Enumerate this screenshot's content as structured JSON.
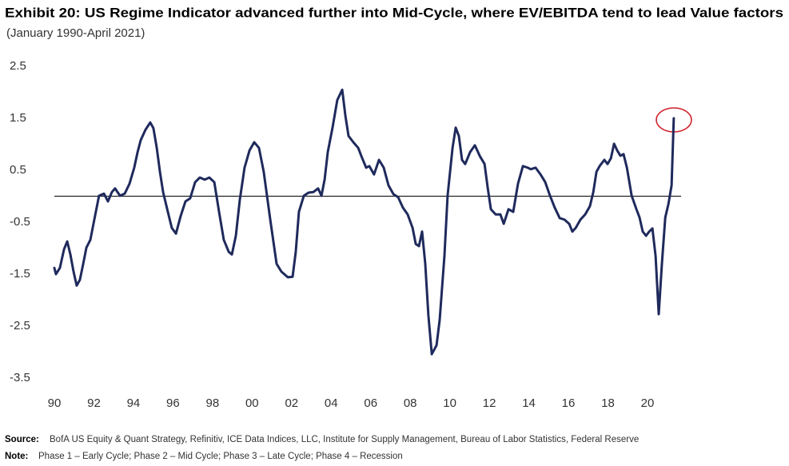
{
  "chart_data": {
    "type": "line",
    "title": "Exhibit 20: US Regime Indicator advanced further into Mid-Cycle, where EV/EBITDA tend to lead Value factors",
    "subtitle": "(January 1990-April 2021)",
    "x": [
      1990.0,
      1990.08,
      1990.28,
      1990.49,
      1990.65,
      1990.81,
      1990.97,
      1991.13,
      1991.29,
      1991.46,
      1991.62,
      1991.82,
      1992.02,
      1992.26,
      1992.51,
      1992.71,
      1992.91,
      1993.07,
      1993.32,
      1993.56,
      1993.8,
      1994.04,
      1994.21,
      1994.37,
      1994.61,
      1994.85,
      1995.01,
      1995.18,
      1995.34,
      1995.5,
      1995.74,
      1995.94,
      1996.15,
      1996.39,
      1996.63,
      1996.87,
      1997.12,
      1997.36,
      1997.6,
      1997.84,
      1998.09,
      1998.33,
      1998.57,
      1998.82,
      1998.98,
      1999.18,
      1999.38,
      1999.62,
      1999.87,
      2000.11,
      2000.35,
      2000.59,
      2000.92,
      2001.24,
      2001.48,
      2001.81,
      2002.05,
      2002.21,
      2002.37,
      2002.62,
      2002.86,
      2003.1,
      2003.34,
      2003.51,
      2003.67,
      2003.83,
      2004.07,
      2004.31,
      2004.56,
      2004.72,
      2004.88,
      2005.12,
      2005.37,
      2005.53,
      2005.77,
      2005.93,
      2006.17,
      2006.42,
      2006.66,
      2006.9,
      2007.15,
      2007.39,
      2007.63,
      2007.87,
      2008.12,
      2008.28,
      2008.44,
      2008.6,
      2008.76,
      2008.92,
      2009.09,
      2009.33,
      2009.49,
      2009.73,
      2009.89,
      2010.14,
      2010.3,
      2010.46,
      2010.62,
      2010.78,
      2011.03,
      2011.27,
      2011.51,
      2011.76,
      2011.92,
      2012.08,
      2012.32,
      2012.56,
      2012.73,
      2012.97,
      2013.21,
      2013.45,
      2013.7,
      2013.94,
      2014.1,
      2014.34,
      2014.59,
      2014.83,
      2015.07,
      2015.31,
      2015.56,
      2015.8,
      2016.04,
      2016.2,
      2016.37,
      2016.61,
      2016.85,
      2017.09,
      2017.26,
      2017.42,
      2017.58,
      2017.82,
      2017.98,
      2018.15,
      2018.31,
      2018.47,
      2018.63,
      2018.79,
      2018.96,
      2019.2,
      2019.44,
      2019.6,
      2019.76,
      2019.93,
      2020.09,
      2020.25,
      2020.41,
      2020.57,
      2020.73,
      2020.9,
      2021.06,
      2021.22,
      2021.33
    ],
    "series": [
      {
        "color": "#1f2a5c",
        "values": [
          -1.38,
          -1.5,
          -1.38,
          -1.02,
          -0.87,
          -1.12,
          -1.45,
          -1.72,
          -1.61,
          -1.3,
          -0.99,
          -0.84,
          -0.45,
          0.01,
          0.05,
          -0.1,
          0.08,
          0.15,
          0.01,
          0.05,
          0.24,
          0.55,
          0.85,
          1.08,
          1.28,
          1.42,
          1.31,
          0.93,
          0.47,
          0.08,
          -0.3,
          -0.61,
          -0.72,
          -0.38,
          -0.1,
          -0.04,
          0.27,
          0.36,
          0.32,
          0.36,
          0.27,
          -0.3,
          -0.84,
          -1.07,
          -1.12,
          -0.76,
          -0.07,
          0.55,
          0.88,
          1.04,
          0.93,
          0.47,
          -0.45,
          -1.3,
          -1.45,
          -1.56,
          -1.55,
          -1.07,
          -0.3,
          0.01,
          0.07,
          0.08,
          0.15,
          0.01,
          0.32,
          0.85,
          1.32,
          1.85,
          2.05,
          1.55,
          1.16,
          1.04,
          0.93,
          0.77,
          0.55,
          0.58,
          0.42,
          0.7,
          0.55,
          0.21,
          0.04,
          -0.02,
          -0.22,
          -0.35,
          -0.61,
          -0.92,
          -0.96,
          -0.68,
          -1.3,
          -2.3,
          -3.04,
          -2.87,
          -2.38,
          -1.15,
          0.01,
          0.93,
          1.32,
          1.16,
          0.7,
          0.62,
          0.85,
          0.98,
          0.78,
          0.62,
          0.16,
          -0.25,
          -0.35,
          -0.35,
          -0.53,
          -0.25,
          -0.3,
          0.24,
          0.58,
          0.55,
          0.52,
          0.55,
          0.42,
          0.27,
          0.01,
          -0.22,
          -0.42,
          -0.45,
          -0.53,
          -0.68,
          -0.61,
          -0.45,
          -0.35,
          -0.19,
          0.08,
          0.47,
          0.58,
          0.7,
          0.62,
          0.73,
          1.01,
          0.88,
          0.78,
          0.81,
          0.55,
          0.01,
          -0.25,
          -0.41,
          -0.68,
          -0.76,
          -0.68,
          -0.62,
          -1.15,
          -2.27,
          -1.3,
          -0.41,
          -0.15,
          0.21,
          1.5
        ]
      }
    ],
    "xlim": [
      1990,
      2021.7
    ],
    "xticks": [
      {
        "value": 1990,
        "label": "90"
      },
      {
        "value": 1992,
        "label": "92"
      },
      {
        "value": 1994,
        "label": "94"
      },
      {
        "value": 1996,
        "label": "96"
      },
      {
        "value": 1998,
        "label": "98"
      },
      {
        "value": 2000,
        "label": "00"
      },
      {
        "value": 2002,
        "label": "02"
      },
      {
        "value": 2004,
        "label": "04"
      },
      {
        "value": 2006,
        "label": "06"
      },
      {
        "value": 2008,
        "label": "08"
      },
      {
        "value": 2010,
        "label": "10"
      },
      {
        "value": 2012,
        "label": "12"
      },
      {
        "value": 2014,
        "label": "14"
      },
      {
        "value": 2016,
        "label": "16"
      },
      {
        "value": 2018,
        "label": "18"
      },
      {
        "value": 2020,
        "label": "20"
      }
    ],
    "ylim": [
      -3.5,
      2.5
    ],
    "yticks": [
      2.5,
      1.5,
      0.5,
      -0.5,
      -1.5,
      -2.5,
      -3.5
    ],
    "reference_line": 0,
    "grid": false,
    "source": {
      "label": "Source:",
      "text": "BofA US Equity & Quant Strategy, Refinitiv, ICE Data Indices, LLC, Institute for Supply Management, Bureau of Labor Statistics, Federal Reserve"
    },
    "note": {
      "label": "Note:",
      "text": "Phase 1 – Early Cycle; Phase 2 – Mid Cycle; Phase 3 – Late Cycle; Phase 4 – Recession"
    }
  }
}
